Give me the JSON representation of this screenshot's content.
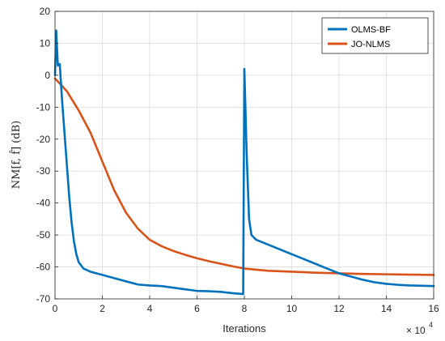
{
  "chart_data": {
    "type": "line",
    "title": "",
    "xlabel": "Iterations",
    "ylabel": "NM[f, f̂] (dB)",
    "x_multiplier_label": "× 10",
    "x_multiplier_exp": "4",
    "xlim": [
      0,
      16
    ],
    "ylim": [
      -70,
      20
    ],
    "x_ticks": [
      "0",
      "2",
      "4",
      "6",
      "8",
      "10",
      "12",
      "14",
      "16"
    ],
    "y_ticks": [
      "20",
      "10",
      "0",
      "-10",
      "-20",
      "-30",
      "-40",
      "-50",
      "-60",
      "-70"
    ],
    "grid": true,
    "legend_position": "top-right",
    "series": [
      {
        "name": "OLMS-BF",
        "color": "#0072BD",
        "points": [
          [
            0,
            0
          ],
          [
            0.05,
            14
          ],
          [
            0.12,
            3
          ],
          [
            0.2,
            3.5
          ],
          [
            0.3,
            -8
          ],
          [
            0.4,
            -18
          ],
          [
            0.5,
            -28
          ],
          [
            0.6,
            -38
          ],
          [
            0.7,
            -46
          ],
          [
            0.8,
            -52
          ],
          [
            0.9,
            -56
          ],
          [
            1.0,
            -58.5
          ],
          [
            1.2,
            -60.5
          ],
          [
            1.5,
            -61.5
          ],
          [
            2.0,
            -62.5
          ],
          [
            2.5,
            -63.5
          ],
          [
            3.0,
            -64.5
          ],
          [
            3.5,
            -65.5
          ],
          [
            4.0,
            -65.8
          ],
          [
            4.5,
            -66.0
          ],
          [
            5.0,
            -66.5
          ],
          [
            5.5,
            -67.0
          ],
          [
            6.0,
            -67.5
          ],
          [
            6.5,
            -67.6
          ],
          [
            7.0,
            -67.8
          ],
          [
            7.5,
            -68.2
          ],
          [
            7.95,
            -68.5
          ],
          [
            8.0,
            2
          ],
          [
            8.1,
            -25
          ],
          [
            8.2,
            -45
          ],
          [
            8.3,
            -50
          ],
          [
            8.5,
            -51.5
          ],
          [
            9.0,
            -53
          ],
          [
            9.5,
            -54.5
          ],
          [
            10.0,
            -56
          ],
          [
            10.5,
            -57.5
          ],
          [
            11.0,
            -59
          ],
          [
            11.5,
            -60.5
          ],
          [
            12.0,
            -62
          ],
          [
            12.5,
            -63
          ],
          [
            13.0,
            -64
          ],
          [
            13.5,
            -64.8
          ],
          [
            14.0,
            -65.3
          ],
          [
            14.5,
            -65.6
          ],
          [
            15.0,
            -65.8
          ],
          [
            15.5,
            -65.9
          ],
          [
            16.0,
            -66
          ]
        ]
      },
      {
        "name": "JO-NLMS",
        "color": "#D95319",
        "points": [
          [
            0,
            -1
          ],
          [
            0.5,
            -5
          ],
          [
            1.0,
            -11
          ],
          [
            1.5,
            -18
          ],
          [
            2.0,
            -27
          ],
          [
            2.5,
            -36
          ],
          [
            3.0,
            -43
          ],
          [
            3.5,
            -48
          ],
          [
            4.0,
            -51.5
          ],
          [
            4.5,
            -53.5
          ],
          [
            5.0,
            -55
          ],
          [
            5.5,
            -56.2
          ],
          [
            6.0,
            -57.3
          ],
          [
            6.5,
            -58.2
          ],
          [
            7.0,
            -59
          ],
          [
            7.5,
            -59.8
          ],
          [
            8.0,
            -60.5
          ],
          [
            9.0,
            -61.2
          ],
          [
            10.0,
            -61.5
          ],
          [
            11.0,
            -61.8
          ],
          [
            12.0,
            -62
          ],
          [
            13.0,
            -62.2
          ],
          [
            14.0,
            -62.3
          ],
          [
            15.0,
            -62.4
          ],
          [
            16.0,
            -62.5
          ]
        ]
      }
    ]
  }
}
